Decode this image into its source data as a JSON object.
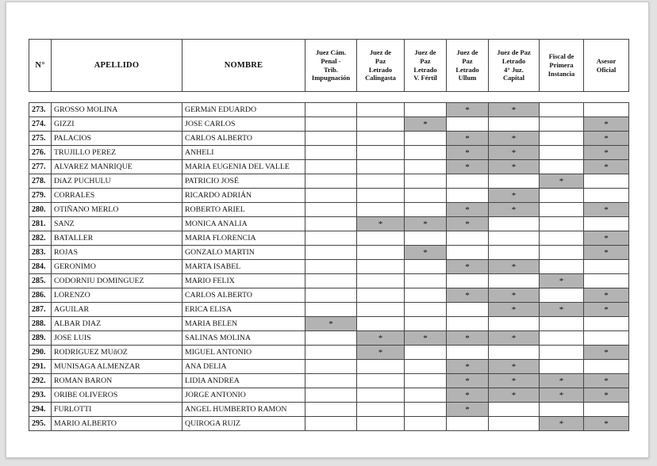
{
  "document": {
    "kind": "scanned-judicial-roster-page",
    "colors": {
      "page_background": "#ffffff",
      "outer_background": "#e2e2e2",
      "mark_cell_fill": "#b3b3b3",
      "table_border": "#444444"
    },
    "mark_symbol": "*"
  },
  "table": {
    "headers": [
      "N°",
      "APELLIDO",
      "NOMBRE",
      "Juez Cám.\nPenal -\nTrib.\nImpugnación",
      "Juez de\nPaz\nLetrado\nCalingasta",
      "Juez de\nPaz\nLetrado\nV. Fértil",
      "Juez de\nPaz\nLetrado\nUllum",
      "Juez de Paz\nLetrado\n4° Juz.\nCapital",
      "Fiscal de\nPrimera\nInstancia",
      "Asesor\nOficial"
    ],
    "mark_columns": [
      "juez_cam_penal_trib_impugnacion",
      "juez_paz_letrado_calingasta",
      "juez_paz_letrado_v_fertil",
      "juez_paz_letrado_ullum",
      "juez_paz_letrado_4_juz_capital",
      "fiscal_primera_instancia",
      "asesor_oficial"
    ],
    "rows": [
      {
        "n": "273.",
        "apellido": "GROSSO MOLINA",
        "nombre": "GERMáN EDUARDO",
        "marks": [
          "",
          "",
          "",
          "*",
          "*",
          "",
          ""
        ]
      },
      {
        "n": "274.",
        "apellido": "GIZZI",
        "nombre": "JOSE CARLOS",
        "marks": [
          "",
          "",
          "*",
          "",
          "",
          "",
          "*"
        ]
      },
      {
        "n": "275.",
        "apellido": "PALACIOS",
        "nombre": "CARLOS ALBERTO",
        "marks": [
          "",
          "",
          "",
          "*",
          "*",
          "",
          "*"
        ]
      },
      {
        "n": "276.",
        "apellido": "TRUJILLO PEREZ",
        "nombre": "ANHELI",
        "marks": [
          "",
          "",
          "",
          "*",
          "*",
          "",
          "*"
        ]
      },
      {
        "n": "277.",
        "apellido": "ALVAREZ MANRIQUE",
        "nombre": "MARIA EUGENIA DEL VALLE",
        "marks": [
          "",
          "",
          "",
          "*",
          "*",
          "",
          "*"
        ]
      },
      {
        "n": "278.",
        "apellido": "DíAZ PUCHULU",
        "nombre": "PATRICIO JOSÉ",
        "marks": [
          "",
          "",
          "",
          "",
          "",
          "*",
          ""
        ]
      },
      {
        "n": "279.",
        "apellido": "CORRALES",
        "nombre": "RICARDO ADRIÁN",
        "marks": [
          "",
          "",
          "",
          "",
          "*",
          "",
          ""
        ]
      },
      {
        "n": "280.",
        "apellido": "OTIÑANO MERLO",
        "nombre": "ROBERTO ARIEL",
        "marks": [
          "",
          "",
          "",
          "*",
          "*",
          "",
          "*"
        ]
      },
      {
        "n": "281.",
        "apellido": "SANZ",
        "nombre": "MONICA ANALIA",
        "marks": [
          "",
          "*",
          "*",
          "*",
          "",
          "",
          ""
        ]
      },
      {
        "n": "282.",
        "apellido": "BATALLER",
        "nombre": "MARIA FLORENCIA",
        "marks": [
          "",
          "",
          "",
          "",
          "",
          "",
          "*"
        ]
      },
      {
        "n": "283.",
        "apellido": "ROJAS",
        "nombre": "GONZALO MARTIN",
        "marks": [
          "",
          "",
          "*",
          "",
          "",
          "",
          "*"
        ]
      },
      {
        "n": "284.",
        "apellido": "GERONIMO",
        "nombre": "MARTA ISABEL",
        "marks": [
          "",
          "",
          "",
          "*",
          "*",
          "",
          ""
        ]
      },
      {
        "n": "285.",
        "apellido": "CODORNIU DOMINGUEZ",
        "nombre": "MARIO FELIX",
        "marks": [
          "",
          "",
          "",
          "",
          "",
          "*",
          ""
        ]
      },
      {
        "n": "286.",
        "apellido": "LORENZO",
        "nombre": "CARLOS ALBERTO",
        "marks": [
          "",
          "",
          "",
          "*",
          "*",
          "",
          "*"
        ]
      },
      {
        "n": "287.",
        "apellido": "AGUILAR",
        "nombre": "ERICA ELISA",
        "marks": [
          "",
          "",
          "",
          "",
          "*",
          "*",
          "*"
        ]
      },
      {
        "n": "288.",
        "apellido": "ALBAR DIAZ",
        "nombre": "MARIA BELEN",
        "marks": [
          "*",
          "",
          "",
          "",
          "",
          "",
          ""
        ]
      },
      {
        "n": "289.",
        "apellido": "JOSE LUIS",
        "nombre": "SALINAS MOLINA",
        "marks": [
          "",
          "*",
          "*",
          "*",
          "*",
          "",
          ""
        ]
      },
      {
        "n": "290.",
        "apellido": "RODRIGUEZ MUñOZ",
        "nombre": "MIGUEL ANTONIO",
        "marks": [
          "",
          "*",
          "",
          "",
          "",
          "",
          "*"
        ]
      },
      {
        "n": "291.",
        "apellido": "MUNISAGA ALMENZAR",
        "nombre": "ANA DELIA",
        "marks": [
          "",
          "",
          "",
          "*",
          "*",
          "",
          ""
        ]
      },
      {
        "n": "292.",
        "apellido": "ROMAN BARON",
        "nombre": "LIDIA ANDREA",
        "marks": [
          "",
          "",
          "",
          "*",
          "*",
          "*",
          "*"
        ]
      },
      {
        "n": "293.",
        "apellido": "ORIBE OLIVEROS",
        "nombre": "JORGE ANTONIO",
        "marks": [
          "",
          "",
          "",
          "*",
          "*",
          "*",
          "*"
        ]
      },
      {
        "n": "294.",
        "apellido": "FURLOTTI",
        "nombre": "ANGEL HUMBERTO RAMON",
        "marks": [
          "",
          "",
          "",
          "*",
          "",
          "",
          ""
        ]
      },
      {
        "n": "295.",
        "apellido": "MARIO ALBERTO",
        "nombre": "QUIROGA RUIZ",
        "marks": [
          "",
          "",
          "",
          "",
          "",
          "*",
          "*"
        ]
      }
    ]
  }
}
